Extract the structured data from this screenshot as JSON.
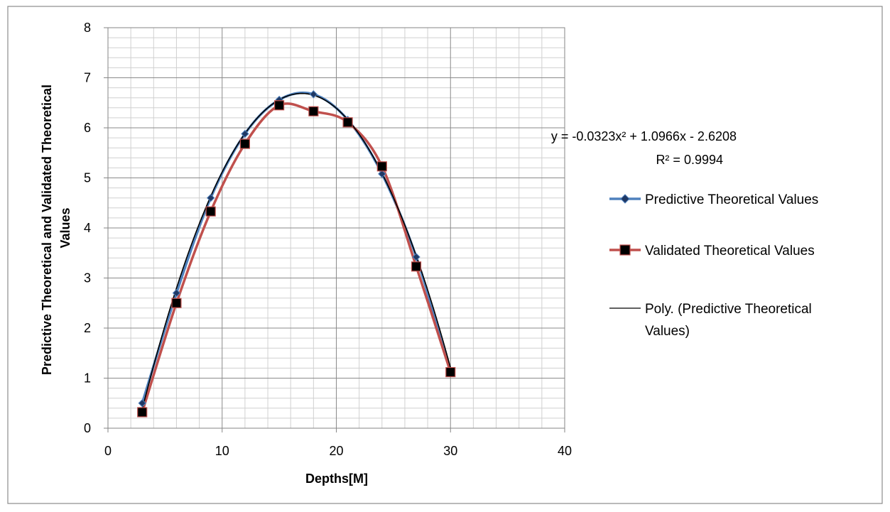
{
  "chart_data": {
    "type": "line",
    "title": "",
    "xlabel": "Depths[M]",
    "ylabel": "Predictive Theoretical and Validated Theoretical Values",
    "xlim": [
      0,
      40
    ],
    "ylim": [
      0,
      8
    ],
    "x_ticks": [
      "0",
      "10",
      "20",
      "30",
      "40"
    ],
    "y_ticks": [
      "0",
      "1",
      "2",
      "3",
      "4",
      "5",
      "6",
      "7",
      "8"
    ],
    "grid": "major and minor",
    "legend_position": "right",
    "series": [
      {
        "name": "Predictive Theoretical  Values",
        "color": "#4F81BD",
        "marker": "diamond",
        "x": [
          3,
          6,
          9,
          12,
          15,
          18,
          21,
          24,
          27,
          30
        ],
        "y": [
          0.5,
          2.7,
          4.6,
          5.88,
          6.56,
          6.67,
          6.16,
          5.08,
          3.42,
          1.12
        ]
      },
      {
        "name": "Validated Theoretical Values",
        "color": "#C0504D",
        "marker": "square",
        "x": [
          3,
          6,
          9,
          12,
          15,
          18,
          21,
          24,
          27,
          30
        ],
        "y": [
          0.32,
          2.5,
          4.33,
          5.68,
          6.45,
          6.33,
          6.11,
          5.23,
          3.23,
          1.12
        ]
      },
      {
        "name": "Poly. (Predictive Theoretical Values)",
        "color": "#000000",
        "type": "trendline",
        "coefficients": [
          -0.0323,
          1.0966,
          -2.6208
        ],
        "x_range": [
          3,
          30
        ]
      }
    ],
    "annotations": {
      "equation": "y = -0.0323x² + 1.0966x - 2.6208",
      "r_squared": "R² = 0.9994"
    },
    "legend": {
      "items": [
        {
          "label": "Predictive Theoretical  Values"
        },
        {
          "label": "Validated Theoretical Values"
        },
        {
          "label_line1": "Poly. (Predictive Theoretical",
          "label_line2": "Values)"
        }
      ]
    }
  }
}
